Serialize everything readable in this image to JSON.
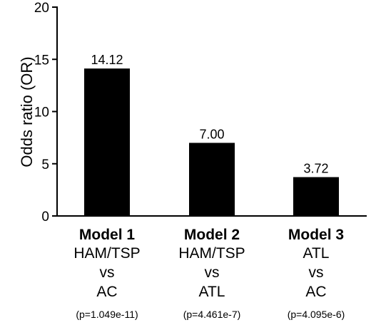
{
  "chart_data": {
    "type": "bar",
    "ylabel": "Odds ratio (OR)",
    "ylim": [
      0,
      20
    ],
    "yticks": [
      0,
      5,
      10,
      15,
      20
    ],
    "grid": false,
    "categories": [
      {
        "title": "Model 1",
        "comparison": [
          "HAM/TSP",
          "vs",
          "AC"
        ],
        "p_value": "(p=1.049e-11)"
      },
      {
        "title": "Model 2",
        "comparison": [
          "HAM/TSP",
          "vs",
          "ATL"
        ],
        "p_value": "(p=4.461e-7)"
      },
      {
        "title": "Model 3",
        "comparison": [
          "ATL",
          "vs",
          "AC"
        ],
        "p_value": "(p=4.095e-6)"
      }
    ],
    "values": [
      14.12,
      7.0,
      3.72
    ],
    "data_labels": [
      "14.12",
      "7.00",
      "3.72"
    ],
    "bar_color": "#000000"
  }
}
